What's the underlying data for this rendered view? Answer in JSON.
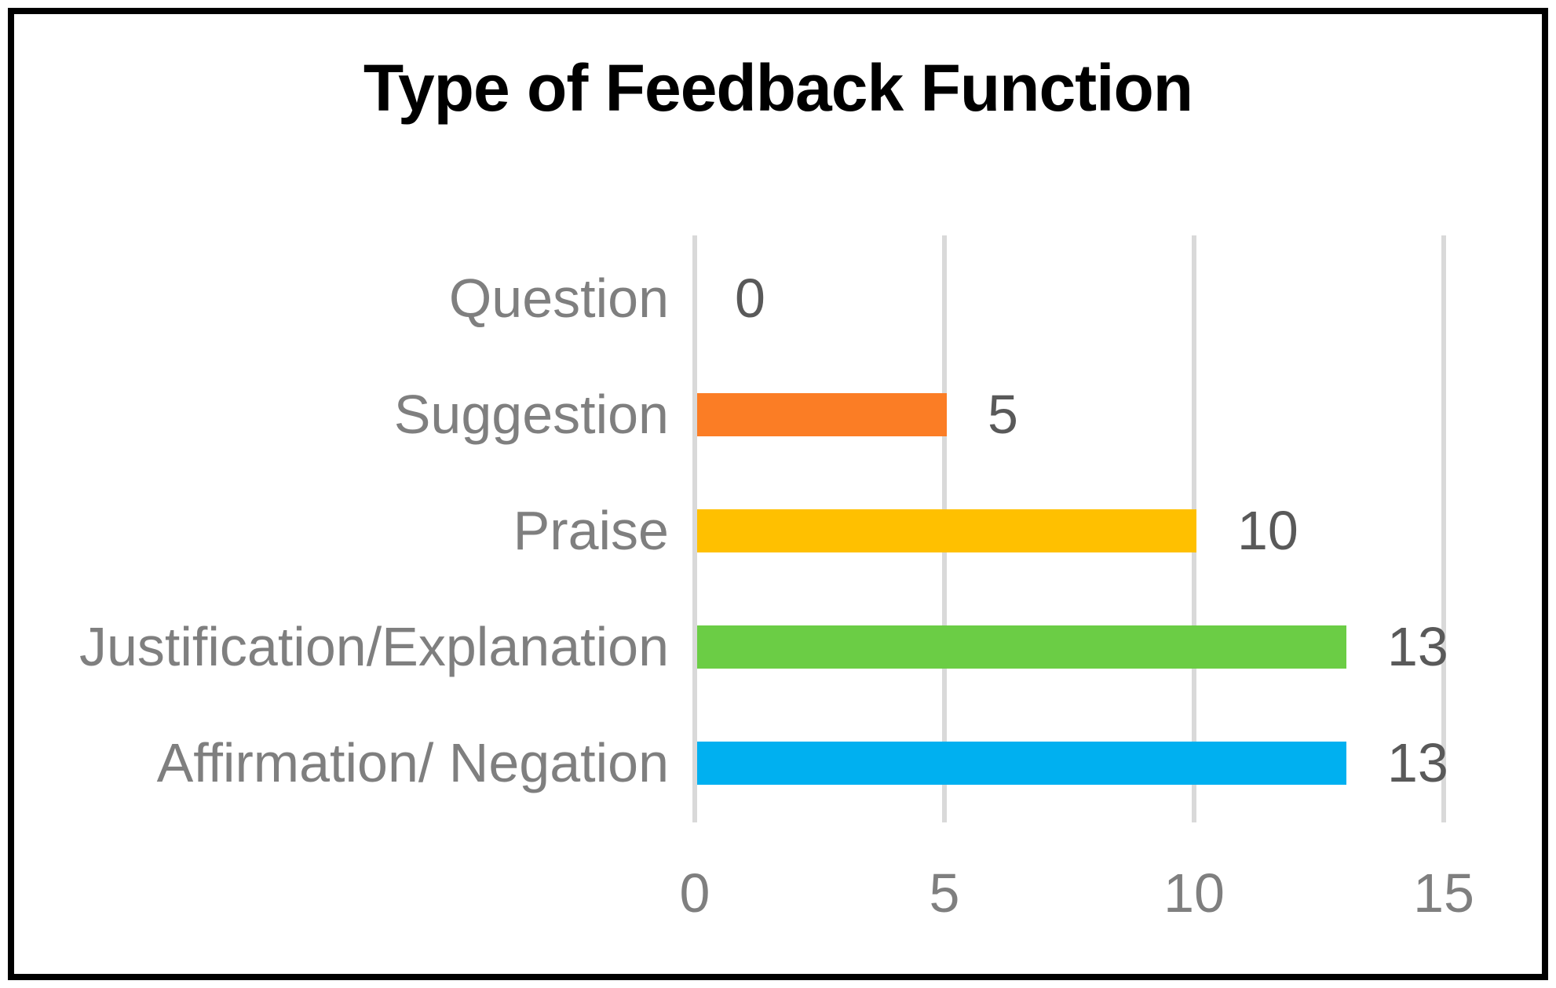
{
  "chart_data": {
    "type": "bar",
    "orientation": "horizontal",
    "title": "Type of Feedback Function",
    "categories": [
      "Question",
      "Suggestion",
      "Praise",
      "Justification/Explanation",
      "Affirmation/ Negation"
    ],
    "values": [
      0,
      5,
      10,
      13,
      13
    ],
    "data_labels": [
      "0",
      "5",
      "10",
      "13",
      "13"
    ],
    "bar_colors": [
      null,
      "#FB7D25",
      "#FFC000",
      "#6BCD45",
      "#00B0F0"
    ],
    "x_ticks": [
      "0",
      "5",
      "10",
      "15"
    ],
    "xlim": [
      0,
      15
    ],
    "grid": "vertical gridlines at 0, 5, 10, 15",
    "legend": "none",
    "colors": {
      "gridline": "#D9D9D9",
      "category_label": "#7F7F7F",
      "tick_label": "#7F7F7F",
      "data_label": "#595959",
      "title": "#000000",
      "border": "#000000",
      "background": "#FFFFFF"
    }
  }
}
